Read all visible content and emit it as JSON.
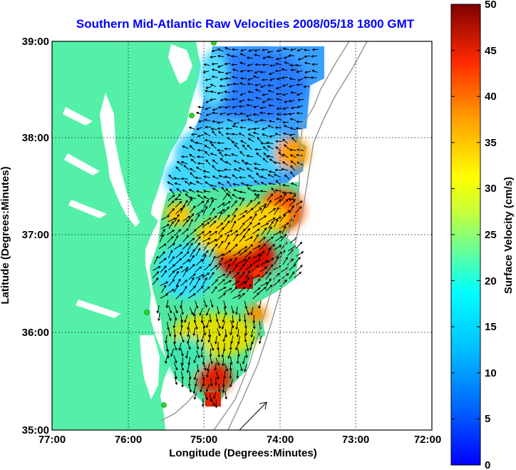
{
  "title": "Southern Mid-Atlantic Raw Velocities 2008/05/18 1800 GMT",
  "xlabel": "Longitude (Degrees:Minutes)",
  "ylabel": "Latitude (Degrees:Minutes)",
  "x_ticks": [
    "77:00",
    "76:00",
    "75:00",
    "74:00",
    "73:00",
    "72:00"
  ],
  "y_ticks": [
    "39:00",
    "38:00",
    "37:00",
    "36:00",
    "35:00"
  ],
  "colorbar": {
    "label": "Surface Velocity (cm/s)",
    "ticks": [
      "50",
      "45",
      "40",
      "35",
      "30",
      "25",
      "20",
      "15",
      "10",
      "5",
      "0"
    ],
    "range": [
      0,
      50
    ]
  },
  "colors": {
    "land": "#55f0a8",
    "title": "#0000ff",
    "grid": "#000000",
    "shelf_contour": "#9a9a9a",
    "station": "#22dd22"
  },
  "chart_data": {
    "type": "heatmap",
    "title": "Southern Mid-Atlantic Raw Velocities 2008/05/18 1800 GMT",
    "xlabel": "Longitude (Degrees:Minutes)",
    "ylabel": "Latitude (Degrees:Minutes)",
    "xlim": [
      -77,
      -72
    ],
    "ylim": [
      35,
      39
    ],
    "grid": true,
    "colorbar_range_cm_s": [
      0,
      50
    ],
    "colormap": "jet",
    "stations": [
      {
        "lon": -74.9,
        "lat": 39.0
      },
      {
        "lon": -75.2,
        "lat": 38.25
      },
      {
        "lon": -75.75,
        "lat": 36.2
      },
      {
        "lon": -75.45,
        "lat": 35.25
      }
    ],
    "regions": [
      {
        "lon": [
          -75.0,
          -73.8
        ],
        "lat": [
          38.0,
          38.95
        ],
        "speed_cm_s": 8
      },
      {
        "lon": [
          -75.3,
          -74.0
        ],
        "lat": [
          37.3,
          38.0
        ],
        "speed_cm_s": 12
      },
      {
        "lon": [
          -74.4,
          -73.6
        ],
        "lat": [
          37.2,
          37.8
        ],
        "speed_cm_s": 35
      },
      {
        "lon": [
          -75.2,
          -74.3
        ],
        "lat": [
          36.6,
          37.2
        ],
        "speed_cm_s": 45
      },
      {
        "lon": [
          -75.5,
          -74.8
        ],
        "lat": [
          36.3,
          37.0
        ],
        "speed_cm_s": 15
      },
      {
        "lon": [
          -75.3,
          -74.3
        ],
        "lat": [
          35.8,
          36.3
        ],
        "speed_cm_s": 25
      },
      {
        "lon": [
          -75.0,
          -74.6
        ],
        "lat": [
          35.3,
          35.8
        ],
        "speed_cm_s": 40
      }
    ],
    "reference_arrow": {
      "lon": -74.35,
      "lat": 35.15,
      "direction": "northeast"
    }
  }
}
